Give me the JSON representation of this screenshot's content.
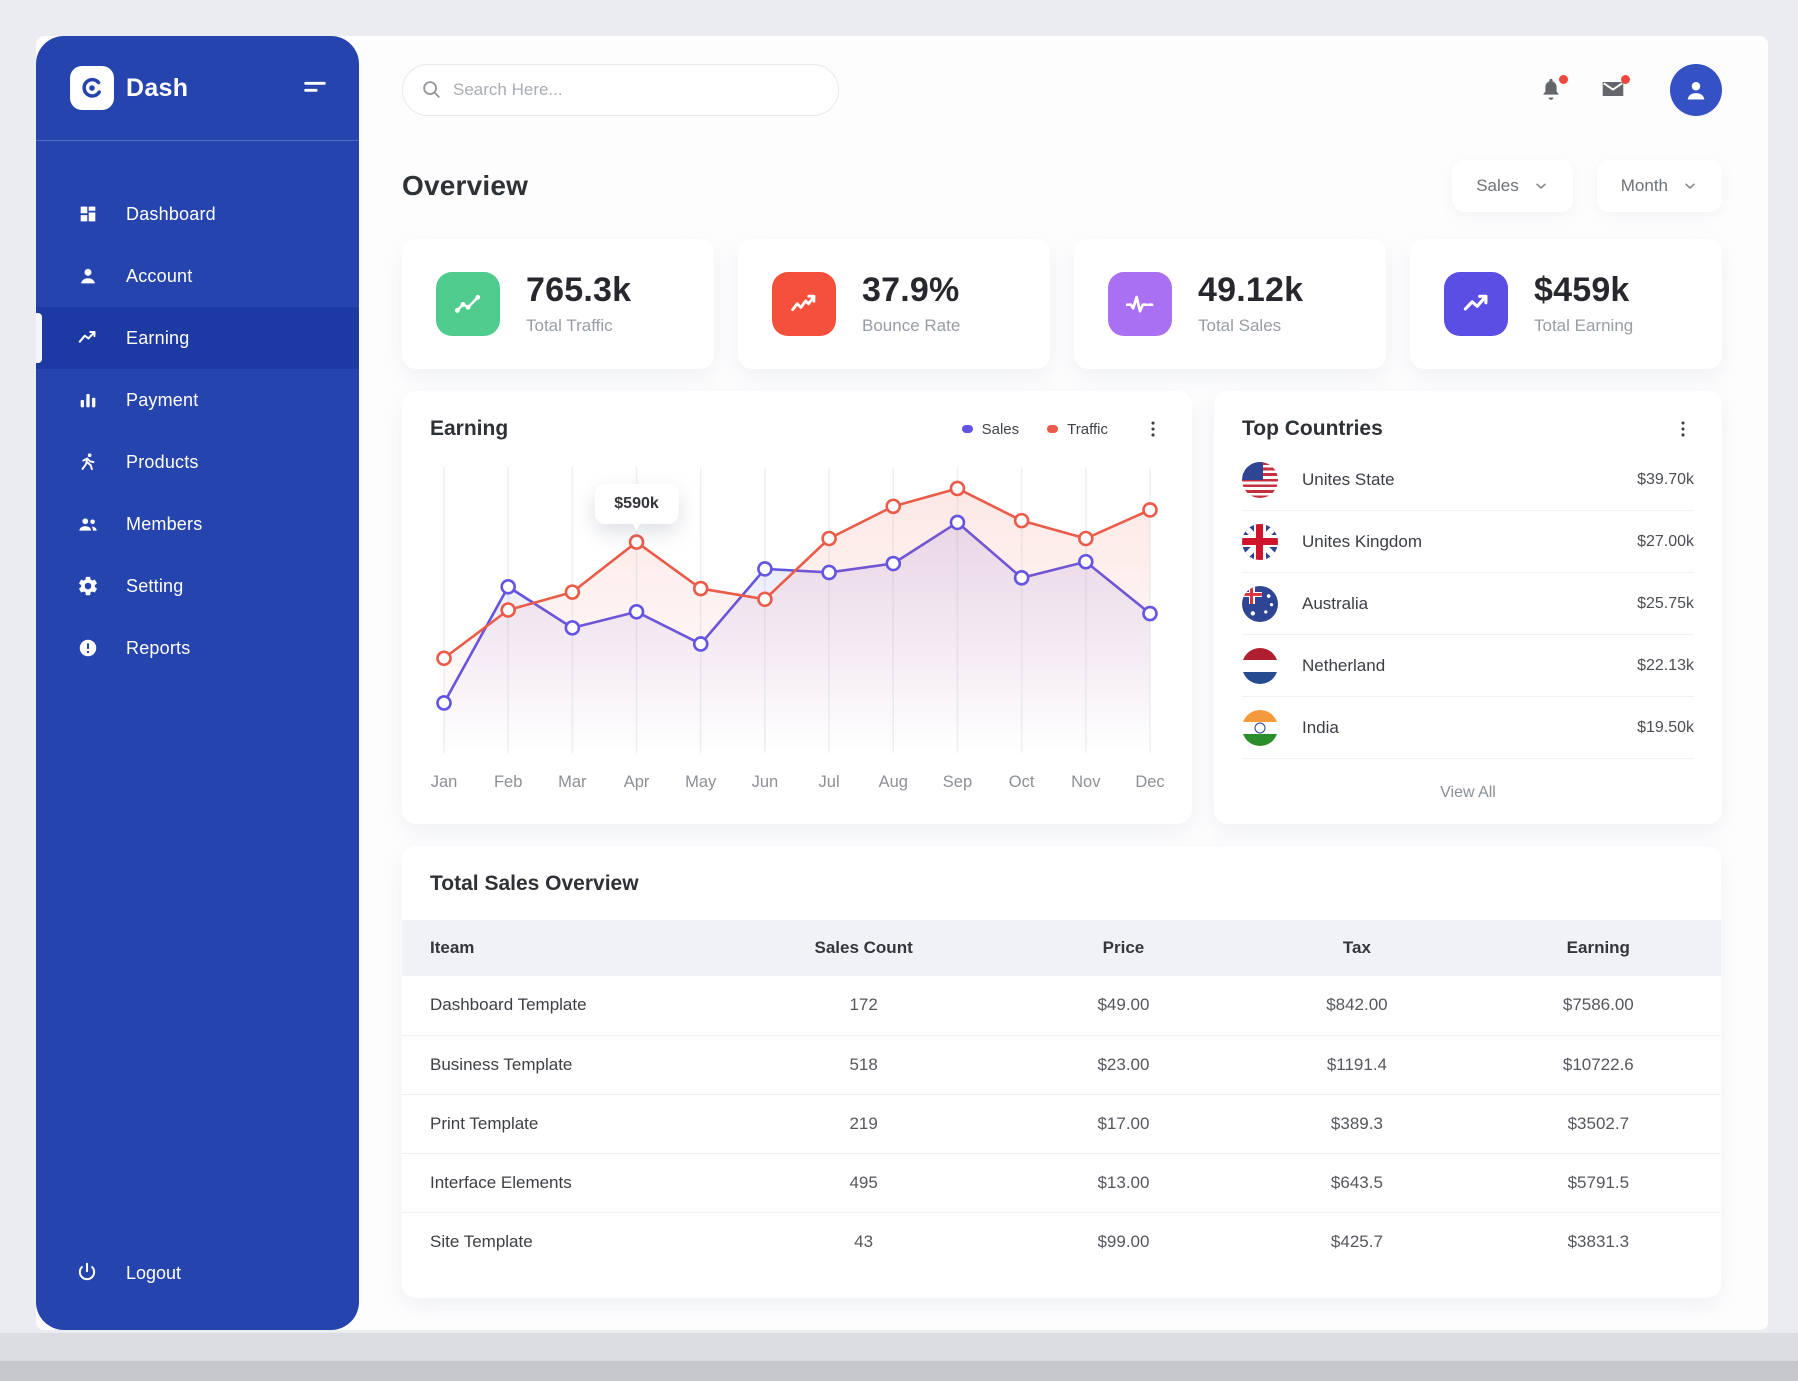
{
  "sidebar": {
    "brand": "Dash",
    "items": [
      {
        "label": "Dashboard",
        "icon": "dashboard-grid-icon",
        "active": false
      },
      {
        "label": "Account",
        "icon": "person-icon",
        "active": false
      },
      {
        "label": "Earning",
        "icon": "trend-line-icon",
        "active": true
      },
      {
        "label": "Payment",
        "icon": "bar-chart-icon",
        "active": false
      },
      {
        "label": "Products",
        "icon": "runner-icon",
        "active": false
      },
      {
        "label": "Members",
        "icon": "members-icon",
        "active": false
      },
      {
        "label": "Setting",
        "icon": "gear-icon",
        "active": false
      },
      {
        "label": "Reports",
        "icon": "alert-circle-icon",
        "active": false
      }
    ],
    "logout_label": "Logout"
  },
  "topbar": {
    "search_placeholder": "Search Here..."
  },
  "overview": {
    "title": "Overview",
    "filters": [
      {
        "label": "Sales"
      },
      {
        "label": "Month"
      }
    ]
  },
  "stat_cards": [
    {
      "value": "765.3k",
      "label": "Total Traffic",
      "color": "#4ecb8d",
      "icon": "line-chart-icon"
    },
    {
      "value": "37.9%",
      "label": "Bounce Rate",
      "color": "#f4503b",
      "icon": "zigzag-up-icon"
    },
    {
      "value": "49.12k",
      "label": "Total Sales",
      "color": "#aa70f4",
      "icon": "pulse-icon"
    },
    {
      "value": "$459k",
      "label": "Total Earning",
      "color": "#5b4ee4",
      "icon": "trend-up-icon"
    }
  ],
  "earning_panel": {
    "title": "Earning"
  },
  "chart_data": {
    "type": "line",
    "title": "Earning",
    "x": [
      "Jan",
      "Feb",
      "Mar",
      "Apr",
      "May",
      "Jun",
      "Jul",
      "Aug",
      "Sep",
      "Oct",
      "Nov",
      "Dec"
    ],
    "series": [
      {
        "name": "Sales",
        "color": "#6355e2",
        "values": [
          140,
          465,
          350,
          395,
          305,
          515,
          505,
          530,
          645,
          490,
          535,
          390
        ]
      },
      {
        "name": "Traffic",
        "color": "#eb5b49",
        "values": [
          265,
          400,
          450,
          590,
          460,
          430,
          600,
          690,
          740,
          650,
          600,
          680
        ]
      }
    ],
    "unit": "$k",
    "ylim": [
      0,
      800
    ],
    "grid": "vertical",
    "legend_position": "top-right",
    "tooltip": {
      "label": "$590k",
      "series": "Traffic",
      "x": "Apr"
    }
  },
  "top_countries": {
    "title": "Top Countries",
    "rows": [
      {
        "name": "Unites State",
        "value": "$39.70k",
        "flag": "us"
      },
      {
        "name": "Unites Kingdom",
        "value": "$27.00k",
        "flag": "uk"
      },
      {
        "name": "Australia",
        "value": "$25.75k",
        "flag": "au"
      },
      {
        "name": "Netherland",
        "value": "$22.13k",
        "flag": "nl"
      },
      {
        "name": "India",
        "value": "$19.50k",
        "flag": "in"
      }
    ],
    "view_all_label": "View All"
  },
  "sales_table": {
    "title": "Total Sales Overview",
    "columns": [
      "Iteam",
      "Sales Count",
      "Price",
      "Tax",
      "Earning"
    ],
    "rows": [
      {
        "item": "Dashboard Template",
        "sales_count": "172",
        "price": "$49.00",
        "tax": "$842.00",
        "earning": "$7586.00"
      },
      {
        "item": "Business Template",
        "sales_count": "518",
        "price": "$23.00",
        "tax": "$1191.4",
        "earning": "$10722.6"
      },
      {
        "item": "Print Template",
        "sales_count": "219",
        "price": "$17.00",
        "tax": "$389.3",
        "earning": "$3502.7"
      },
      {
        "item": "Interface Elements",
        "sales_count": "495",
        "price": "$13.00",
        "tax": "$643.5",
        "earning": "$5791.5"
      },
      {
        "item": "Site Template",
        "sales_count": "43",
        "price": "$99.00",
        "tax": "$425.7",
        "earning": "$3831.3"
      }
    ]
  }
}
